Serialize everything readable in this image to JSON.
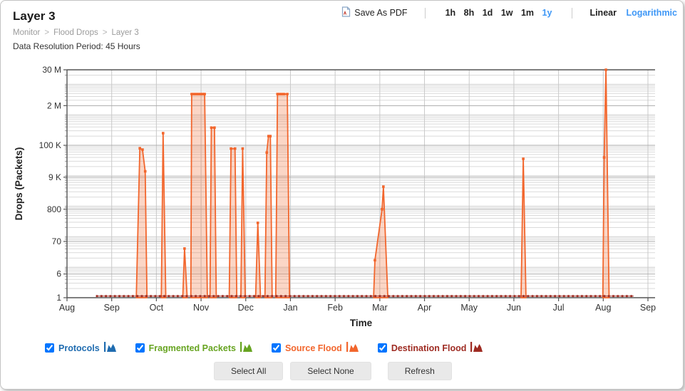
{
  "header": {
    "title": "Layer 3",
    "breadcrumb": [
      "Monitor",
      "Flood Drops",
      "Layer 3"
    ],
    "breadcrumb_separator": ">",
    "data_resolution": "Data Resolution Period: 45 Hours"
  },
  "toolbar": {
    "save_as_pdf": "Save As PDF",
    "time_ranges": [
      "1h",
      "8h",
      "1d",
      "1w",
      "1m",
      "1y"
    ],
    "active_time_range": "1y",
    "scale_options": [
      "Linear",
      "Logarithmic"
    ],
    "active_scale": "Logarithmic",
    "link_color": "#3e97f6"
  },
  "chart_data": {
    "type": "area",
    "title": "",
    "xlabel": "Time",
    "ylabel": "Drops (Packets)",
    "y_scale": "log",
    "ylim": [
      1,
      30000000
    ],
    "y_tick_labels": [
      "30 M",
      "2 M",
      "100 K",
      "9 K",
      "800",
      "70",
      "6",
      "1"
    ],
    "y_tick_values": [
      30000000,
      2000000,
      100000,
      9000,
      800,
      70,
      6,
      1
    ],
    "x_tick_labels": [
      "Aug",
      "Sep",
      "Oct",
      "Nov",
      "Dec",
      "Jan",
      "Feb",
      "Mar",
      "Apr",
      "May",
      "Jun",
      "Jul",
      "Aug",
      "Sep"
    ],
    "x_unit": "month_index",
    "grid": true,
    "series": [
      {
        "name": "Source Flood",
        "type": "area-spikes",
        "color": "#F2662D",
        "fill_opacity": 0.27,
        "spikes": [
          [
            [
              1.55,
              1
            ],
            [
              1.63,
              80000
            ],
            [
              1.69,
              72000
            ],
            [
              1.75,
              14000
            ],
            [
              1.79,
              1
            ]
          ],
          [
            [
              2.11,
              1
            ],
            [
              2.15,
              250000
            ],
            [
              2.21,
              1
            ]
          ],
          [
            [
              2.59,
              1
            ],
            [
              2.63,
              41
            ],
            [
              2.69,
              1
            ]
          ],
          [
            [
              2.77,
              1
            ],
            [
              2.79,
              4800000
            ],
            [
              2.84,
              4800000
            ],
            [
              2.89,
              4800000
            ],
            [
              2.94,
              4800000
            ],
            [
              2.99,
              4800000
            ],
            [
              3.04,
              4800000
            ],
            [
              3.08,
              4800000
            ],
            [
              3.14,
              1
            ]
          ],
          [
            [
              3.2,
              1
            ],
            [
              3.23,
              380000
            ],
            [
              3.3,
              380000
            ],
            [
              3.34,
              1
            ]
          ],
          [
            [
              3.63,
              1
            ],
            [
              3.67,
              78000
            ],
            [
              3.76,
              78000
            ],
            [
              3.8,
              1
            ]
          ],
          [
            [
              3.89,
              1
            ],
            [
              3.93,
              78000
            ],
            [
              3.99,
              1
            ]
          ],
          [
            [
              4.22,
              1
            ],
            [
              4.27,
              285
            ],
            [
              4.33,
              1
            ]
          ],
          [
            [
              4.43,
              1
            ],
            [
              4.47,
              58000
            ],
            [
              4.51,
              200000
            ],
            [
              4.55,
              200000
            ],
            [
              4.59,
              1
            ]
          ],
          [
            [
              4.67,
              1
            ],
            [
              4.71,
              4800000
            ],
            [
              4.76,
              4800000
            ],
            [
              4.81,
              4800000
            ],
            [
              4.86,
              4800000
            ],
            [
              4.93,
              4800000
            ],
            [
              4.98,
              1
            ]
          ],
          [
            [
              6.86,
              1
            ],
            [
              6.89,
              17
            ],
            [
              7.05,
              800
            ],
            [
              7.08,
              4400
            ],
            [
              7.18,
              1
            ]
          ],
          [
            [
              10.16,
              1
            ],
            [
              10.21,
              36000
            ],
            [
              10.27,
              1
            ]
          ],
          [
            [
              11.99,
              1
            ],
            [
              12.02,
              40000
            ],
            [
              12.06,
              30000000
            ],
            [
              12.13,
              1
            ]
          ]
        ]
      },
      {
        "name": "Destination Flood",
        "type": "line-markers",
        "color": "#9E2B22",
        "value": 1,
        "x_range": [
          0.67,
          12.68
        ]
      }
    ]
  },
  "legend": {
    "items": [
      {
        "label": "Protocols",
        "color": "#1F6CB0",
        "checked": true
      },
      {
        "label": "Fragmented Packets",
        "color": "#67A421",
        "checked": true
      },
      {
        "label": "Source Flood",
        "color": "#F2662D",
        "checked": true
      },
      {
        "label": "Destination Flood",
        "color": "#9E2B22",
        "checked": true
      }
    ]
  },
  "buttons": {
    "select_all": "Select All",
    "select_none": "Select None",
    "refresh": "Refresh"
  }
}
